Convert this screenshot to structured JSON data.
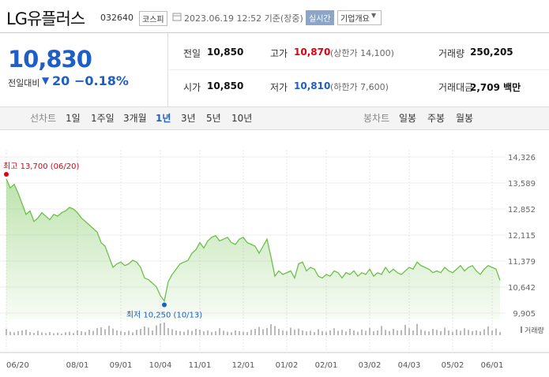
{
  "header": {
    "name": "LG유플러스",
    "code": "032640",
    "market": "코스피",
    "timestamp": "2023.06.19 12:52 기준(장중)",
    "realtime": "실시간",
    "overview": "기업개요"
  },
  "quote": {
    "price": "10,830",
    "change_label": "전일대비",
    "change": "20",
    "change_rate": "−0.18%",
    "rows": [
      [
        {
          "label": "전일",
          "value": "10,850"
        },
        {
          "label": "고가",
          "value": "10,870",
          "note": "(상한가 14,100)"
        },
        {
          "label": "거래량",
          "value": "250,205"
        }
      ],
      [
        {
          "label": "시가",
          "value": "10,850"
        },
        {
          "label": "저가",
          "value": "10,810",
          "note": "(하한가 7,600)"
        },
        {
          "label": "거래대금",
          "value": "2,709 백만"
        }
      ]
    ]
  },
  "tabs": {
    "line_label": "선차트",
    "line_periods": [
      "1일",
      "1주일",
      "3개월",
      "1년",
      "3년",
      "5년",
      "10년"
    ],
    "candle_label": "봉차트",
    "candle_periods": [
      "일봉",
      "주봉",
      "월봉"
    ]
  },
  "chart_data": {
    "type": "line",
    "color": "#6cc04a",
    "categories": [
      "06/20",
      null,
      null,
      null,
      null,
      null,
      null,
      null,
      null,
      null,
      null,
      null,
      null,
      null,
      null,
      null,
      null,
      null,
      "08/01",
      null,
      null,
      null,
      null,
      null,
      null,
      null,
      null,
      null,
      null,
      "09/01",
      null,
      null,
      null,
      null,
      null,
      null,
      null,
      null,
      null,
      "10/04",
      null,
      null,
      null,
      null,
      null,
      null,
      null,
      null,
      null,
      "11/01",
      null,
      null,
      null,
      null,
      null,
      null,
      null,
      null,
      null,
      null,
      "12/01",
      null,
      null,
      null,
      null,
      null,
      null,
      null,
      null,
      null,
      null,
      "01/02",
      null,
      null,
      null,
      null,
      null,
      null,
      null,
      null,
      null,
      "02/01",
      null,
      null,
      null,
      null,
      null,
      null,
      null,
      null,
      null,
      null,
      "03/02",
      null,
      null,
      null,
      null,
      null,
      null,
      null,
      null,
      null,
      "04/03",
      null,
      null,
      null,
      null,
      null,
      null,
      null,
      null,
      null,
      null,
      "05/02",
      null,
      null,
      null,
      null,
      null,
      null,
      null,
      null,
      null,
      "06/01",
      null,
      null
    ],
    "values": [
      13700,
      13450,
      13550,
      13300,
      13000,
      12700,
      12800,
      12500,
      12600,
      12750,
      12650,
      12550,
      12700,
      12650,
      12750,
      12800,
      12900,
      12850,
      12750,
      12600,
      12500,
      12400,
      12300,
      12200,
      11900,
      11800,
      11500,
      11200,
      11300,
      11350,
      11250,
      11300,
      11400,
      11350,
      11200,
      10900,
      10850,
      10750,
      10650,
      10400,
      10250,
      10800,
      11000,
      11150,
      11300,
      11350,
      11400,
      11600,
      11700,
      11900,
      11750,
      11950,
      12050,
      12100,
      11950,
      12000,
      12050,
      11900,
      11850,
      12000,
      12050,
      11900,
      11850,
      11800,
      11600,
      11800,
      12000,
      11500,
      10950,
      11100,
      11000,
      11050,
      11100,
      10900,
      11300,
      11350,
      11100,
      11200,
      11150,
      10950,
      10900,
      11000,
      10950,
      11100,
      11050,
      10900,
      11050,
      11000,
      11100,
      10950,
      11050,
      11000,
      11150,
      10950,
      11050,
      11000,
      11200,
      11050,
      11150,
      11050,
      11000,
      11100,
      11200,
      11150,
      11350,
      11250,
      11200,
      11150,
      11050,
      11100,
      11050,
      11200,
      11100,
      11050,
      11150,
      11250,
      11100,
      11200,
      11250,
      11100,
      11000,
      11150,
      11250,
      11200,
      11150,
      10830
    ],
    "ylim": [
      9905,
      14326
    ],
    "yticks": [
      {
        "value": 14326,
        "label": "14,326"
      },
      {
        "value": 13589,
        "label": "13,589"
      },
      {
        "value": 12852,
        "label": "12,852"
      },
      {
        "value": 12115,
        "label": "12,115"
      },
      {
        "value": 11379,
        "label": "11,379"
      },
      {
        "value": 10642,
        "label": "10,642"
      },
      {
        "value": 9905,
        "label": "9,905"
      }
    ],
    "grid": true,
    "high_label": "최고 13,700 (06/20)",
    "high_color": "#e0000f",
    "low_label": "최저 10,250 (10/13)",
    "low_color": "#1d5fc6",
    "volume": {
      "label": "거래량",
      "color": "#8c8c8c",
      "values": [
        40,
        22,
        18,
        25,
        30,
        35,
        20,
        15,
        28,
        18,
        14,
        20,
        12,
        16,
        10,
        18,
        22,
        14,
        30,
        25,
        20,
        35,
        28,
        45,
        50,
        38,
        60,
        42,
        30,
        25,
        20,
        28,
        18,
        35,
        40,
        55,
        48,
        30,
        62,
        75,
        80,
        45,
        38,
        30,
        26,
        22,
        34,
        28,
        40,
        36,
        24,
        30,
        20,
        26,
        44,
        28,
        22,
        18,
        30,
        26,
        22,
        20,
        34,
        40,
        52,
        38,
        46,
        70,
        58,
        40,
        30,
        26,
        48,
        36,
        42,
        30,
        24,
        28,
        20,
        38,
        26,
        22,
        30,
        44,
        28,
        34,
        24,
        40,
        30,
        22,
        36,
        28,
        46,
        24,
        30,
        58,
        34,
        26,
        40,
        30,
        32,
        66,
        44,
        30,
        72,
        36,
        28,
        24,
        40,
        34,
        26,
        48,
        30,
        22,
        36,
        28,
        44,
        34,
        26,
        30,
        24,
        38,
        56,
        30,
        42,
        20
      ]
    }
  }
}
